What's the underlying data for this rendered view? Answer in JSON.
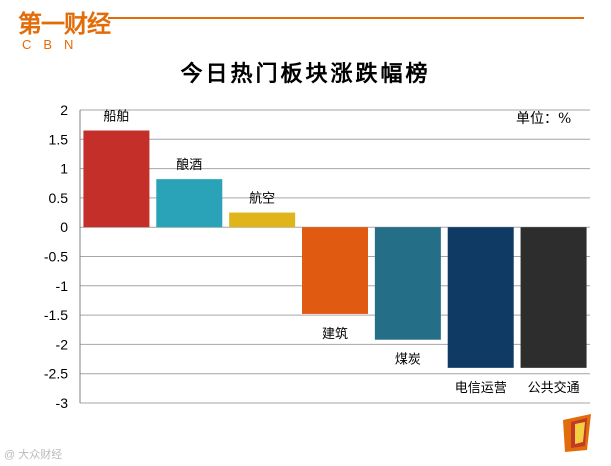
{
  "header": {
    "logo_cn": "第一财经",
    "logo_en": "CBN"
  },
  "chart_data": {
    "type": "bar",
    "title": "今日热门板块涨跌幅榜",
    "unit": "单位：%",
    "categories": [
      "船舶",
      "酿酒",
      "航空",
      "建筑",
      "煤炭",
      "电信运营",
      "公共交通"
    ],
    "values": [
      1.65,
      0.82,
      0.25,
      -1.48,
      -1.92,
      -2.4,
      -2.4
    ],
    "colors": [
      "#c42f2a",
      "#2aa3b8",
      "#e0b51c",
      "#e05a12",
      "#246f87",
      "#0f3a63",
      "#2d2d2d"
    ],
    "ylim": [
      -3,
      2
    ],
    "yticks": [
      "2",
      "1.5",
      "1",
      "0.5",
      "0",
      "-0.5",
      "-1",
      "-1.5",
      "-2",
      "-2.5",
      "-3"
    ],
    "ytick_values": [
      2,
      1.5,
      1,
      0.5,
      0,
      -0.5,
      -1,
      -1.5,
      -2,
      -2.5,
      -3
    ],
    "grid": true,
    "xlabel": "",
    "ylabel": ""
  },
  "footer": {
    "watermark": "@ 大众财经"
  }
}
